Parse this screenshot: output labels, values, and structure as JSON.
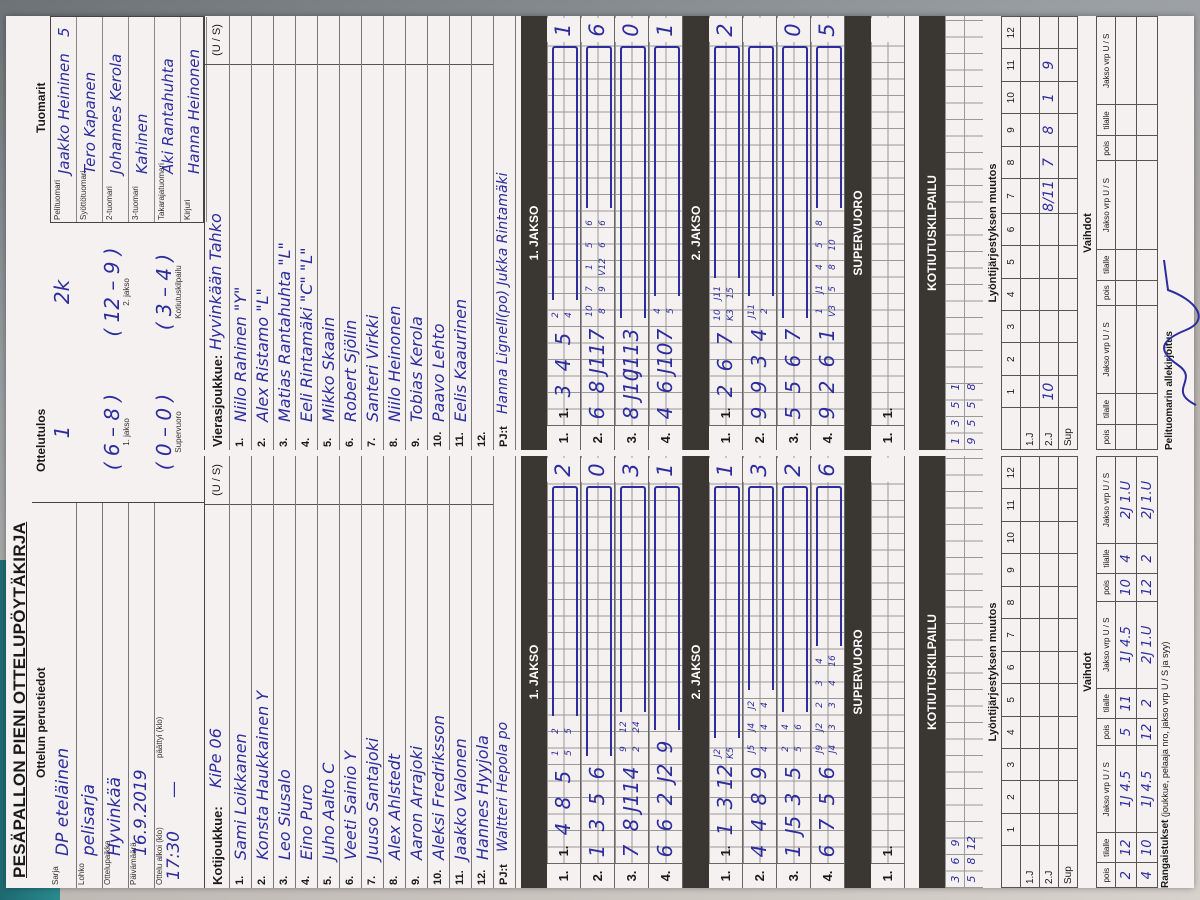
{
  "title": "PESÄPALLON PIENI OTTELUPÖYTÄKIRJA",
  "basics": {
    "heading": "Ottelun perustiedot",
    "fields": [
      {
        "label": "Sarja",
        "value": "DP eteläinen"
      },
      {
        "label": "Lohko",
        "value": "pelisarja"
      },
      {
        "label": "Ottelupaikka",
        "value": "Hyvinkää"
      },
      {
        "label": "Päivämäärä",
        "value": "16.9.2019"
      }
    ],
    "start_label": "Ottelu alkoi (klo)",
    "start": "17:30",
    "end_label": "päättyi (klo)",
    "end": "—"
  },
  "result": {
    "heading": "Ottelutulos",
    "home": "1",
    "away": "2k",
    "periods": [
      {
        "label": "1. jakso",
        "score": "( 6 – 8 )"
      },
      {
        "label": "2. jakso",
        "score": "( 12 – 9 )"
      },
      {
        "label": "Supervuoro",
        "score": "( 0 – 0 )"
      },
      {
        "label": "Kotiutuskilpailu",
        "score": "( 3 – 4 )"
      }
    ]
  },
  "referees": {
    "heading": "Tuomarit",
    "rows": [
      {
        "label": "Pelituomari",
        "name": "Jaakko Heininen",
        "mark": "5"
      },
      {
        "label": "Syöttötuomari",
        "name": "Tero Kapanen"
      },
      {
        "label": "2-tuomari",
        "name": "Johannes Kerola"
      },
      {
        "label": "3-tuomari",
        "name": "Kahinen"
      },
      {
        "label": "Takarajatuomari",
        "name": "Aki Rantahuhta"
      },
      {
        "label": "Kirjuri",
        "name": "Hanna Heinonen"
      }
    ]
  },
  "home_team": {
    "label": "Kotijoukkue:",
    "name": "KiPe 06",
    "us_label": "(U / S)",
    "players": [
      {
        "no": "1.",
        "name": "Sami Loikkanen"
      },
      {
        "no": "2.",
        "name": "Konsta Haukkainen  Y"
      },
      {
        "no": "3.",
        "name": "Leo Siusalo"
      },
      {
        "no": "4.",
        "name": "Eino Puro"
      },
      {
        "no": "5.",
        "name": "Juho Aalto  C"
      },
      {
        "no": "6.",
        "name": "Veeti Sainio  Y"
      },
      {
        "no": "7.",
        "name": "Juuso Santajoki"
      },
      {
        "no": "8.",
        "name": "Alex Ahlstedt"
      },
      {
        "no": "9.",
        "name": "Aaron Arrajoki"
      },
      {
        "no": "10.",
        "name": "Aleksi Fredriksson"
      },
      {
        "no": "11.",
        "name": "Jaakko Valonen"
      },
      {
        "no": "12.",
        "name": "Hannes Hyyjola"
      }
    ],
    "pj_label": "PJ:t",
    "pj": "Waltteri Hepola  po"
  },
  "away_team": {
    "label": "Vierasjoukkue:",
    "name": "Hyvinkään Tahko",
    "us_label": "(U / S)",
    "players": [
      {
        "no": "1.",
        "name": "Niilo Rahinen  \"Y\""
      },
      {
        "no": "2.",
        "name": "Alex Ristamo  \"L\""
      },
      {
        "no": "3.",
        "name": "Matias Rantahuhta  \"L\""
      },
      {
        "no": "4.",
        "name": "Eeli Rintamäki  \"C\" \"L\""
      },
      {
        "no": "5.",
        "name": "Mikko Skaain"
      },
      {
        "no": "6.",
        "name": "Robert Sjölin"
      },
      {
        "no": "7.",
        "name": "Santeri Virkki"
      },
      {
        "no": "8.",
        "name": "Niilo Heinonen"
      },
      {
        "no": "9.",
        "name": "Tobias Kerola"
      },
      {
        "no": "10.",
        "name": "Paavo Lehto"
      },
      {
        "no": "11.",
        "name": "Eelis Kaaurinen"
      },
      {
        "no": "12.",
        "name": ""
      }
    ],
    "pj_label": "PJ:t",
    "pj": "Hanna Lignell(po) Jukka Rintamäki"
  },
  "innings": {
    "home": {
      "jakso1": {
        "label": "1. JAKSO",
        "rows": [
          {
            "no": "1.",
            "prefix": "1.",
            "tokens": [
              "4",
              "8",
              "5",
              {
                "top": "1",
                "bottom": "5"
              },
              {
                "top": "2",
                "bottom": "5"
              }
            ],
            "total": "2"
          },
          {
            "no": "2.",
            "tokens": [
              "1",
              "3",
              "5",
              "6"
            ],
            "total": "0"
          },
          {
            "no": "3.",
            "tokens": [
              "7",
              "8",
              "J11",
              "4",
              {
                "top": "9",
                "bottom": "2"
              },
              {
                "top": "12",
                "bottom": "24"
              }
            ],
            "total": "3"
          },
          {
            "no": "4.",
            "tokens": [
              "6",
              "6",
              "2",
              "J2",
              "9"
            ],
            "total": "1"
          }
        ]
      },
      "jakso2": {
        "label": "2. JAKSO",
        "rows": [
          {
            "no": "1.",
            "prefix": "1.",
            "tokens": [
              "1",
              "3",
              "12",
              {
                "top": "J2",
                "bottom": "K5"
              }
            ],
            "total": "1"
          },
          {
            "no": "2.",
            "tokens": [
              "4",
              "4",
              "8",
              "9",
              {
                "top": "J5",
                "bottom": "4"
              },
              {
                "top": "J4",
                "bottom": "4"
              },
              {
                "top": "J2",
                "bottom": "4"
              }
            ],
            "total": "3"
          },
          {
            "no": "3.",
            "tokens": [
              "1",
              "J5",
              "3",
              "5",
              {
                "top": "2",
                "bottom": "5"
              },
              {
                "top": "4",
                "bottom": "6"
              }
            ],
            "total": "2"
          },
          {
            "no": "4.",
            "tokens": [
              "6",
              "7",
              "5",
              "6",
              {
                "top": "J9",
                "bottom": "J4"
              },
              {
                "top": "J2",
                "bottom": "3"
              },
              {
                "top": "2",
                "bottom": "3"
              },
              {
                "top": "3",
                "bottom": "4"
              },
              {
                "top": "4",
                "bottom": "16"
              }
            ],
            "total": "6"
          }
        ]
      },
      "supervuoro": {
        "label": "SUPERVUORO",
        "rows": [
          {
            "no": "1.",
            "prefix": "1.",
            "tokens": [],
            "total": ""
          }
        ]
      },
      "kotiutus": {
        "label": "KOTIUTUSKILPAILU",
        "tokens": [
          {
            "top": "3",
            "bottom": "5"
          },
          {
            "top": "6",
            "bottom": "8"
          },
          {
            "top": "9",
            "bottom": "12"
          }
        ]
      }
    },
    "away": {
      "jakso1": {
        "label": "1. JAKSO",
        "rows": [
          {
            "no": "1.",
            "prefix": "1.",
            "tokens": [
              "3",
              "4",
              "5",
              {
                "top": "2",
                "bottom": "4"
              }
            ],
            "total": "1"
          },
          {
            "no": "2.",
            "tokens": [
              "6",
              "8",
              "J11",
              "7",
              {
                "top": "10",
                "bottom": "8"
              },
              {
                "top": "7",
                "bottom": "9"
              },
              {
                "top": "1",
                "bottom": "V12"
              },
              {
                "top": "5",
                "bottom": "6"
              },
              {
                "top": "6",
                "bottom": "6"
              }
            ],
            "total": "6"
          },
          {
            "no": "3.",
            "tokens": [
              "8",
              "J10",
              "J11",
              "3"
            ],
            "total": "0"
          },
          {
            "no": "4.",
            "tokens": [
              "4",
              "6",
              "J10",
              "7",
              {
                "top": "4",
                "bottom": "5"
              }
            ],
            "total": "1"
          }
        ]
      },
      "jakso2": {
        "label": "2. JAKSO",
        "rows": [
          {
            "no": "1.",
            "prefix": "1.",
            "tokens": [
              "2",
              "6",
              "7",
              {
                "top": "10",
                "bottom": "K3"
              },
              {
                "top": "J11",
                "bottom": "15"
              }
            ],
            "total": "2"
          },
          {
            "no": "2.",
            "tokens": [
              "9",
              "9",
              "3",
              "4",
              {
                "top": "J11",
                "bottom": "2"
              }
            ],
            "total": ""
          },
          {
            "no": "3.",
            "tokens": [
              "5",
              "5",
              "6",
              "7"
            ],
            "total": "0"
          },
          {
            "no": "4.",
            "tokens": [
              "9",
              "2",
              "6",
              "1",
              {
                "top": "1",
                "bottom": "V3"
              },
              {
                "top": "J1",
                "bottom": "5"
              },
              {
                "top": "4",
                "bottom": "8"
              },
              {
                "top": "5",
                "bottom": "10"
              },
              {
                "top": "8",
                "bottom": ""
              }
            ],
            "total": "5"
          }
        ]
      },
      "supervuoro": {
        "label": "SUPERVUORO",
        "rows": [
          {
            "no": "1.",
            "prefix": "1.",
            "tokens": [],
            "total": ""
          }
        ]
      },
      "kotiutus": {
        "label": "KOTIUTUSKILPAILU",
        "tokens": [
          {
            "top": "1",
            "bottom": "9"
          },
          {
            "top": "3",
            "bottom": "5"
          },
          {
            "top": "5",
            "bottom": "5"
          },
          {
            "top": "1",
            "bottom": "8"
          }
        ]
      }
    }
  },
  "lineup_changes": {
    "title": "Lyöntijärjestyksen muutos",
    "columns": [
      "1",
      "2",
      "3",
      "4",
      "5",
      "6",
      "7",
      "8",
      "9",
      "10",
      "11",
      "12"
    ],
    "home": [
      {
        "label": "1.J",
        "values": [
          "",
          "",
          "",
          "",
          "",
          "",
          "",
          "",
          "",
          "",
          "",
          ""
        ]
      },
      {
        "label": "2.J",
        "values": [
          "",
          "",
          "",
          "",
          "",
          "",
          "",
          "",
          "",
          "",
          "",
          ""
        ]
      },
      {
        "label": "Sup",
        "values": [
          "",
          "",
          "",
          "",
          "",
          "",
          "",
          "",
          "",
          "",
          "",
          ""
        ]
      }
    ],
    "away": [
      {
        "label": "1.J",
        "values": [
          "",
          "",
          "",
          "",
          "",
          "",
          "",
          "",
          "",
          "",
          "",
          ""
        ]
      },
      {
        "label": "2.J",
        "values": [
          "10",
          "",
          "",
          "",
          "",
          "",
          "8/11",
          "7",
          "8",
          "1",
          "9",
          ""
        ]
      },
      {
        "label": "Sup",
        "values": [
          "",
          "",
          "",
          "",
          "",
          "",
          "",
          "",
          "",
          "",
          "",
          ""
        ]
      }
    ]
  },
  "substitutions": {
    "title": "Vaihdot",
    "columns": [
      "pois",
      "tilalle",
      "Jakso vrp U / S",
      "pois",
      "tilalle",
      "Jakso vrp U / S",
      "pois",
      "tilalle",
      "Jakso vrp U / S"
    ],
    "home": [
      [
        "2",
        "12",
        "1J 4.5",
        "5",
        "11",
        "1J 4.5",
        "10",
        "4",
        "2J 1.U"
      ],
      [
        "4",
        "10",
        "1J 4.5",
        "12",
        "2",
        "2J 1.U",
        "12",
        "2",
        "2J 1.U"
      ]
    ],
    "away": [
      [
        "",
        "",
        "",
        "",
        "",
        "",
        "",
        "",
        ""
      ],
      [
        "",
        "",
        "",
        "",
        "",
        "",
        "",
        "",
        ""
      ]
    ]
  },
  "penalties": {
    "label": "Rangaistukset",
    "hint": "(joukkue, pelaaja nro, jakso vrp U / S ja syy)"
  },
  "signature": {
    "label": "Pelituomarin allekirjoitus"
  },
  "colors": {
    "ink": "#2d2d9e",
    "band": "#3a3631",
    "paper": "#f4f1f0"
  }
}
